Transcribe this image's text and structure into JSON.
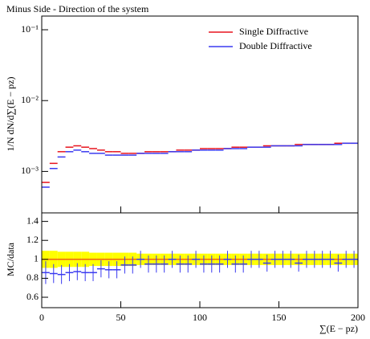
{
  "chart_data": {
    "type": "step",
    "title": "Minus Side - Direction of the system",
    "x_label": "∑(E − pz)",
    "y_label": "1/N dN/d∑(E − pz)",
    "ratio_label": "MC/data",
    "legend": "upper right",
    "xlim": [
      0,
      200
    ],
    "xticks": [
      0,
      50,
      100,
      150,
      200
    ],
    "ylim": [
      0.00026,
      0.156
    ],
    "log_y": true,
    "yticks": [
      {
        "value": 0.001,
        "label": "10⁻³"
      },
      {
        "value": 0.01,
        "label": "10⁻²"
      },
      {
        "value": 0.1,
        "label": "10⁻¹"
      }
    ],
    "bin_width": 5,
    "x": [
      2.5,
      7.5,
      12.5,
      17.5,
      22.5,
      27.5,
      32.5,
      37.5,
      42.5,
      47.5,
      52.5,
      57.5,
      62.5,
      67.5,
      72.5,
      77.5,
      82.5,
      87.5,
      92.5,
      97.5,
      102.5,
      107.5,
      112.5,
      117.5,
      122.5,
      127.5,
      132.5,
      137.5,
      142.5,
      147.5,
      152.5,
      157.5,
      162.5,
      167.5,
      172.5,
      177.5,
      182.5,
      187.5,
      192.5,
      197.5
    ],
    "series": [
      {
        "name": "Single Diffractive",
        "color": "#e8141e",
        "values": [
          0.0007,
          0.0013,
          0.0019,
          0.0022,
          0.0023,
          0.0022,
          0.0021,
          0.002,
          0.0019,
          0.0019,
          0.0018,
          0.0018,
          0.0018,
          0.0019,
          0.0019,
          0.0019,
          0.0019,
          0.002,
          0.002,
          0.002,
          0.0021,
          0.0021,
          0.0021,
          0.0021,
          0.0022,
          0.0022,
          0.0022,
          0.0022,
          0.0023,
          0.0023,
          0.0023,
          0.0023,
          0.0024,
          0.0024,
          0.0024,
          0.0024,
          0.0024,
          0.0025,
          0.0025,
          0.0025
        ]
      },
      {
        "name": "Double Diffractive",
        "color": "#3a3af0",
        "values": [
          0.0006,
          0.0011,
          0.0016,
          0.0019,
          0.002,
          0.0019,
          0.0018,
          0.0018,
          0.0017,
          0.0017,
          0.0017,
          0.0017,
          0.0018,
          0.0018,
          0.0018,
          0.0018,
          0.0019,
          0.0019,
          0.0019,
          0.002,
          0.002,
          0.002,
          0.002,
          0.0021,
          0.0021,
          0.0021,
          0.0022,
          0.0022,
          0.0022,
          0.0023,
          0.0023,
          0.0023,
          0.0023,
          0.0024,
          0.0024,
          0.0024,
          0.0024,
          0.0024,
          0.0025,
          0.0025
        ]
      }
    ],
    "ratio_ylim": [
      0.49,
      1.49
    ],
    "ratio_yticks": [
      0.6,
      0.8,
      1,
      1.2,
      1.4
    ],
    "ratio_reference": 1,
    "band_color": "#ffff00",
    "band_errors": [
      0.09,
      0.09,
      0.08,
      0.08,
      0.08,
      0.08,
      0.07,
      0.07,
      0.07,
      0.07,
      0.07,
      0.07,
      0.06,
      0.06,
      0.06,
      0.06,
      0.06,
      0.06,
      0.06,
      0.06,
      0.06,
      0.06,
      0.06,
      0.06,
      0.06,
      0.06,
      0.06,
      0.06,
      0.06,
      0.06,
      0.06,
      0.06,
      0.06,
      0.06,
      0.06,
      0.06,
      0.06,
      0.06,
      0.06,
      0.06
    ],
    "ratio_values": [
      0.86,
      0.85,
      0.84,
      0.86,
      0.87,
      0.86,
      0.86,
      0.9,
      0.89,
      0.89,
      0.94,
      0.94,
      1.0,
      0.95,
      0.95,
      0.95,
      1.0,
      0.95,
      0.95,
      1.0,
      0.95,
      0.95,
      0.95,
      1.0,
      0.95,
      0.95,
      1.0,
      1.0,
      0.96,
      1.0,
      1.0,
      1.0,
      0.96,
      1.0,
      1.0,
      1.0,
      1.0,
      0.96,
      1.0,
      1.0
    ],
    "ratio_errors": [
      0.12,
      0.1,
      0.1,
      0.09,
      0.09,
      0.09,
      0.09,
      0.09,
      0.09,
      0.09,
      0.09,
      0.09,
      0.09,
      0.09,
      0.09,
      0.09,
      0.09,
      0.09,
      0.09,
      0.09,
      0.09,
      0.09,
      0.09,
      0.09,
      0.09,
      0.09,
      0.09,
      0.09,
      0.09,
      0.09,
      0.09,
      0.09,
      0.09,
      0.09,
      0.09,
      0.09,
      0.09,
      0.09,
      0.09,
      0.09
    ]
  }
}
